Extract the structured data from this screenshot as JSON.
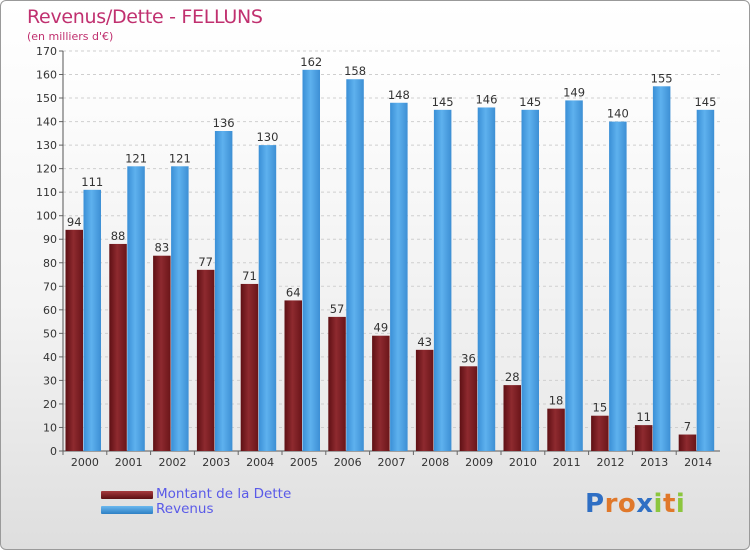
{
  "chart_data": {
    "type": "bar",
    "title": "Revenus/Dette - FELLUNS",
    "subtitle": "(en milliers d'€)",
    "categories": [
      "2000",
      "2001",
      "2002",
      "2003",
      "2004",
      "2005",
      "2006",
      "2007",
      "2008",
      "2009",
      "2010",
      "2011",
      "2012",
      "2013",
      "2014"
    ],
    "series": [
      {
        "name": "Montant de la Dette",
        "color": "#7b1e22",
        "values": [
          94,
          88,
          83,
          77,
          71,
          64,
          57,
          49,
          43,
          36,
          28,
          18,
          15,
          11,
          7
        ]
      },
      {
        "name": "Revenus",
        "color": "#4aa0e0",
        "values": [
          111,
          121,
          121,
          136,
          130,
          162,
          158,
          148,
          145,
          146,
          145,
          149,
          140,
          155,
          145
        ]
      }
    ],
    "yticks": [
      0,
      10,
      20,
      30,
      40,
      50,
      60,
      70,
      80,
      90,
      100,
      110,
      120,
      130,
      140,
      150,
      160,
      170
    ],
    "ylim": [
      0,
      170
    ],
    "grid": true,
    "legend_position": "bottom-left"
  },
  "legend": {
    "debt_label": "Montant de la Dette",
    "revenue_label": "Revenus"
  },
  "logo": {
    "letters": [
      "P",
      "r",
      "o",
      "x",
      "i",
      "t",
      "i"
    ],
    "colors": [
      "#2f6fc4",
      "#e0782a",
      "#e0782a",
      "#2f6fc4",
      "#8cc63e",
      "#e0782a",
      "#8cc63e"
    ]
  }
}
